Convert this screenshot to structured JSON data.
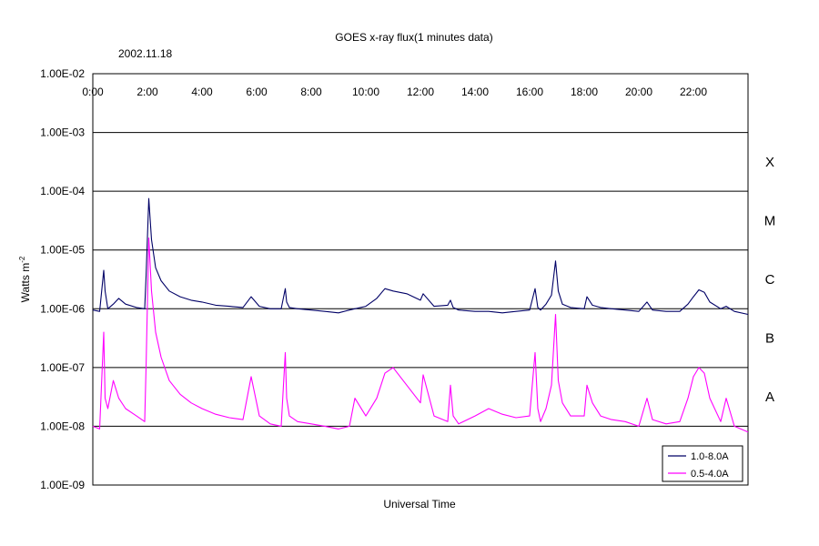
{
  "chart_data": {
    "type": "line",
    "title": "GOES x-ray flux(1 minutes data)",
    "subtitle": "2002.11.18",
    "xlabel": "Universal Time",
    "ylabel": "Watts m",
    "ylabel_sup": "-2",
    "x_unit": "UT hours",
    "xlim": [
      0,
      24
    ],
    "ylim": [
      1e-09,
      0.01
    ],
    "yscale": "log",
    "grid": "horizontal",
    "legend_position": "bottom-right",
    "x_tick_labels": [
      "0:00",
      "2:00",
      "4:00",
      "6:00",
      "8:00",
      "10:00",
      "12:00",
      "14:00",
      "16:00",
      "18:00",
      "20:00",
      "22:00"
    ],
    "y_tick_labels": [
      "1.00E-02",
      "1.00E-03",
      "1.00E-04",
      "1.00E-05",
      "1.00E-06",
      "1.00E-07",
      "1.00E-08",
      "1.00E-09"
    ],
    "flare_classes": [
      "X",
      "M",
      "C",
      "B",
      "A"
    ],
    "series": [
      {
        "name": "1.0-8.0A",
        "color": "#000066",
        "x": [
          0,
          0.25,
          0.4,
          0.45,
          0.55,
          0.75,
          0.95,
          1.2,
          1.6,
          1.9,
          1.95,
          2.05,
          2.15,
          2.3,
          2.5,
          2.8,
          3.2,
          3.6,
          4,
          4.5,
          5,
          5.5,
          5.8,
          6.1,
          6.5,
          6.9,
          7.05,
          7.1,
          7.2,
          7.5,
          8,
          8.5,
          9,
          9.4,
          9.6,
          10,
          10.4,
          10.7,
          11,
          11.5,
          12,
          12.1,
          12.5,
          13,
          13.1,
          13.2,
          13.4,
          14,
          14.5,
          15,
          15.5,
          16,
          16.2,
          16.3,
          16.4,
          16.6,
          16.8,
          16.95,
          17.05,
          17.2,
          17.5,
          18,
          18.1,
          18.3,
          18.6,
          19,
          19.5,
          20,
          20.3,
          20.5,
          21,
          21.5,
          21.8,
          22,
          22.2,
          22.4,
          22.6,
          23,
          23.2,
          23.5,
          24
        ],
        "y": [
          9.5e-07,
          9e-07,
          4.5e-06,
          2e-06,
          1e-06,
          1.2e-06,
          1.5e-06,
          1.2e-06,
          1.05e-06,
          1e-06,
          3.5e-06,
          7.5e-05,
          1.5e-05,
          5e-06,
          3e-06,
          2e-06,
          1.6e-06,
          1.4e-06,
          1.3e-06,
          1.15e-06,
          1.1e-06,
          1.05e-06,
          1.6e-06,
          1.1e-06,
          1e-06,
          1e-06,
          2.2e-06,
          1.3e-06,
          1.05e-06,
          1e-06,
          9.5e-07,
          9e-07,
          8.5e-07,
          9.5e-07,
          1e-06,
          1.1e-06,
          1.5e-06,
          2.2e-06,
          2e-06,
          1.8e-06,
          1.4e-06,
          1.8e-06,
          1.1e-06,
          1.15e-06,
          1.4e-06,
          1.05e-06,
          9.5e-07,
          9e-07,
          9e-07,
          8.5e-07,
          9e-07,
          9.5e-07,
          2.2e-06,
          1.05e-06,
          9.5e-07,
          1.2e-06,
          1.7e-06,
          6.5e-06,
          2e-06,
          1.2e-06,
          1.05e-06,
          1e-06,
          1.6e-06,
          1.15e-06,
          1.05e-06,
          1e-06,
          9.5e-07,
          9e-07,
          1.3e-06,
          9.5e-07,
          9e-07,
          9e-07,
          1.2e-06,
          1.6e-06,
          2.1e-06,
          1.9e-06,
          1.3e-06,
          1e-06,
          1.1e-06,
          9e-07,
          8e-07
        ]
      },
      {
        "name": "0.5-4.0A",
        "color": "#ff00ff",
        "x": [
          0,
          0.25,
          0.4,
          0.45,
          0.55,
          0.75,
          0.95,
          1.2,
          1.6,
          1.9,
          1.95,
          2.05,
          2.15,
          2.3,
          2.5,
          2.8,
          3.2,
          3.6,
          4,
          4.5,
          5,
          5.5,
          5.8,
          6.1,
          6.5,
          6.9,
          7.05,
          7.1,
          7.2,
          7.5,
          8,
          8.5,
          9,
          9.4,
          9.6,
          10,
          10.4,
          10.7,
          11,
          11.5,
          12,
          12.1,
          12.5,
          13,
          13.1,
          13.2,
          13.4,
          14,
          14.5,
          15,
          15.5,
          16,
          16.2,
          16.3,
          16.4,
          16.6,
          16.8,
          16.95,
          17.05,
          17.2,
          17.5,
          18,
          18.1,
          18.3,
          18.6,
          19,
          19.5,
          20,
          20.3,
          20.5,
          21,
          21.5,
          21.8,
          22,
          22.2,
          22.4,
          22.6,
          23,
          23.2,
          23.5,
          24
        ],
        "y": [
          1e-08,
          9e-09,
          4e-07,
          3e-08,
          2e-08,
          6e-08,
          3e-08,
          2e-08,
          1.5e-08,
          1.2e-08,
          1e-07,
          1.6e-05,
          2e-06,
          4e-07,
          1.5e-07,
          6e-08,
          3.5e-08,
          2.5e-08,
          2e-08,
          1.6e-08,
          1.4e-08,
          1.3e-08,
          7e-08,
          1.5e-08,
          1.1e-08,
          1e-08,
          1.8e-07,
          3e-08,
          1.5e-08,
          1.2e-08,
          1.1e-08,
          1e-08,
          9e-09,
          1e-08,
          3e-08,
          1.5e-08,
          3e-08,
          8e-08,
          1e-07,
          5e-08,
          2.5e-08,
          7.5e-08,
          1.5e-08,
          1.2e-08,
          5e-08,
          1.5e-08,
          1.1e-08,
          1.5e-08,
          2e-08,
          1.6e-08,
          1.4e-08,
          1.5e-08,
          1.8e-07,
          2e-08,
          1.2e-08,
          2e-08,
          5e-08,
          8e-07,
          6e-08,
          2.5e-08,
          1.5e-08,
          1.5e-08,
          5e-08,
          2.5e-08,
          1.5e-08,
          1.3e-08,
          1.2e-08,
          1e-08,
          3e-08,
          1.3e-08,
          1.1e-08,
          1.2e-08,
          3e-08,
          7e-08,
          1e-07,
          8e-08,
          3e-08,
          1.2e-08,
          3e-08,
          1e-08,
          8e-09
        ]
      }
    ]
  }
}
